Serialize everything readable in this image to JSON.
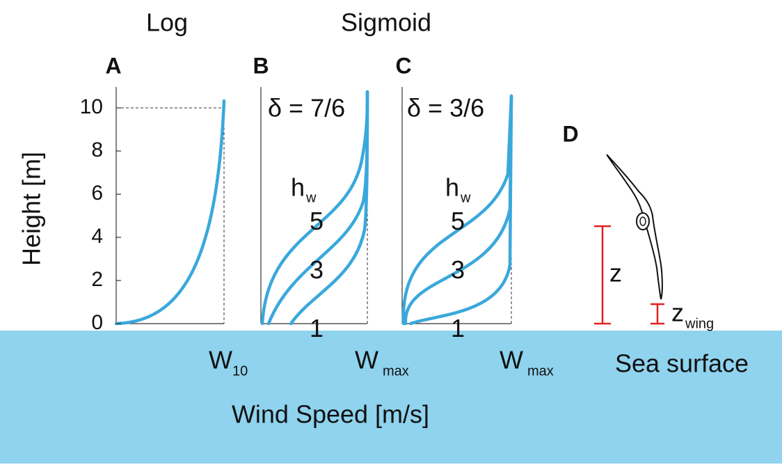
{
  "header": {
    "log": "Log",
    "sigmoid": "Sigmoid"
  },
  "y_axis": {
    "label": "Height [m]",
    "ticks": [
      0,
      2,
      4,
      6,
      8,
      10
    ]
  },
  "x_axis_label": "Wind Speed [m/s]",
  "panels": [
    {
      "label": "A",
      "x_label": "W",
      "x_sub": "10"
    },
    {
      "label": "B",
      "delta": "δ = 7/6",
      "hw": "h",
      "hw_sub": "w",
      "hw_values": [
        5,
        3,
        1
      ],
      "x_label": "W",
      "x_sub": "max"
    },
    {
      "label": "C",
      "delta": "δ = 3/6",
      "hw": "h",
      "hw_sub": "w",
      "hw_values": [
        5,
        3,
        1
      ],
      "x_label": "W",
      "x_sub": "max"
    },
    {
      "label": "D",
      "z": "z",
      "z_wing": "z",
      "z_wing_sub": "wing",
      "surface": "Sea surface"
    }
  ]
}
